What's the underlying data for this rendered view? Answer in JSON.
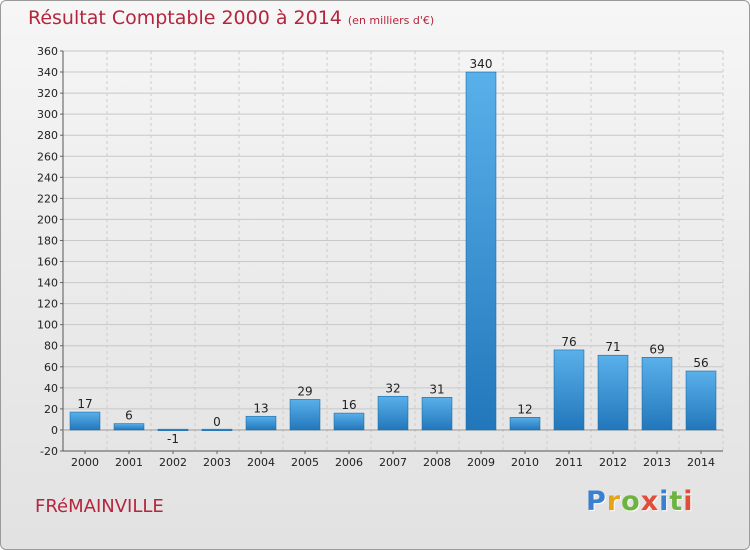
{
  "title": "Résultat Comptable 2000 à 2014",
  "subtitle": "(en milliers d'€)",
  "commune": "FRéMAINVILLE",
  "logo": {
    "letters": [
      "P",
      "r",
      "o",
      "x",
      "i",
      "t",
      "i"
    ],
    "colors": [
      "#3a7fd0",
      "#e8a21a",
      "#6db33f",
      "#e04e3a",
      "#3a7fd0",
      "#6db33f",
      "#e04e3a"
    ]
  },
  "colors": {
    "title": "#b5253d",
    "bar_light": "#5ab0ea",
    "bar_dark": "#2277bb"
  },
  "chart_data": {
    "type": "bar",
    "title": "Résultat Comptable 2000 à 2014",
    "subtitle": "(en milliers d'€)",
    "categories": [
      "2000",
      "2001",
      "2002",
      "2003",
      "2004",
      "2005",
      "2006",
      "2007",
      "2008",
      "2009",
      "2010",
      "2011",
      "2012",
      "2013",
      "2014"
    ],
    "values": [
      17,
      6,
      -1,
      0,
      13,
      29,
      16,
      32,
      31,
      340,
      12,
      76,
      71,
      69,
      56
    ],
    "data_labels": [
      "17",
      "6",
      "-1",
      "0",
      "13",
      "29",
      "16",
      "32",
      "31",
      "340",
      "12",
      "76",
      "71",
      "69",
      "56"
    ],
    "ylim": [
      -20,
      360
    ],
    "yticks": [
      -20,
      0,
      20,
      40,
      60,
      80,
      100,
      120,
      140,
      160,
      180,
      200,
      220,
      240,
      260,
      280,
      300,
      320,
      340,
      360
    ],
    "grid": true,
    "xlabel": "",
    "ylabel": ""
  }
}
